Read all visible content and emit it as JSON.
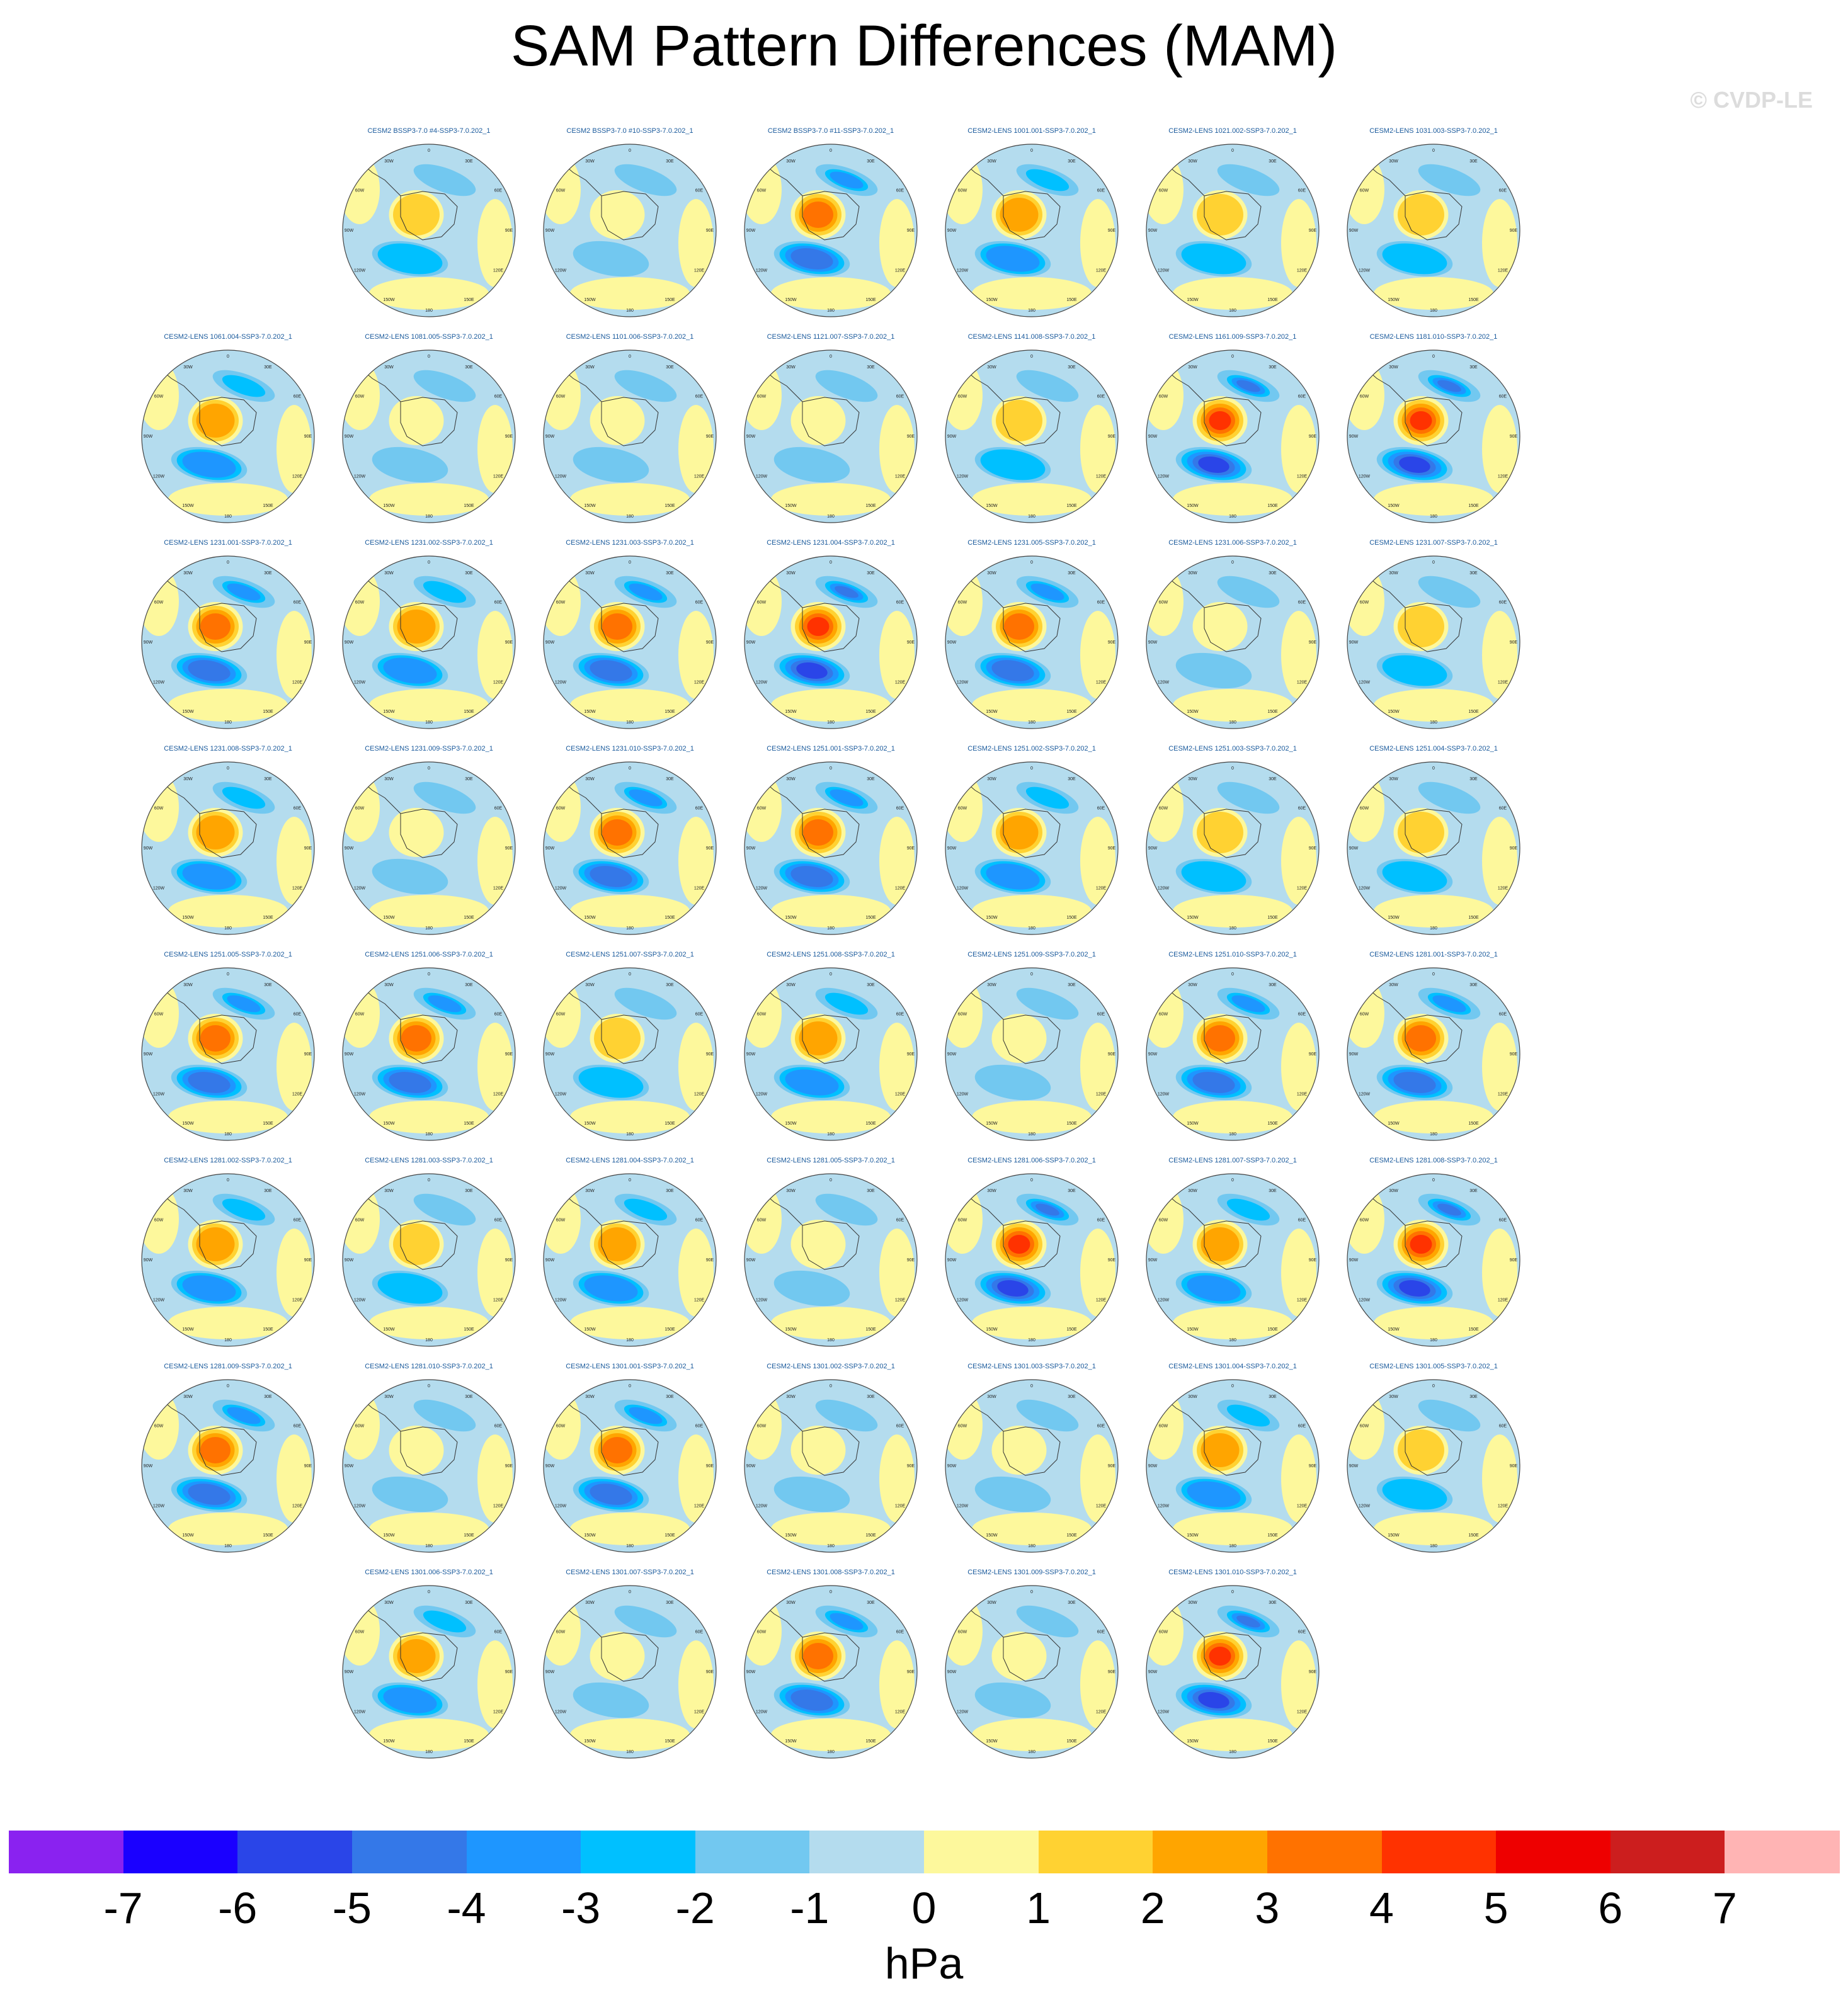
{
  "title": "SAM Pattern Differences (MAM)",
  "watermark": "© CVDP-LE",
  "chart_data": {
    "type": "heatmap",
    "projection": "south-polar-stereographic",
    "title": "SAM Pattern Differences (MAM)",
    "grid_columns": 7,
    "map_labels": [
      "0",
      "30E",
      "60E",
      "90E",
      "120E",
      "150E",
      "180",
      "150W",
      "120W",
      "90W",
      "60W",
      "30W"
    ],
    "panels": [
      {
        "name": "CESM2 BSSP3-7.0 #4-SSP3-7.0.202_1",
        "row": 0,
        "col": 1,
        "amp": 2
      },
      {
        "name": "CESM2 BSSP3-7.0 #10-SSP3-7.0.202_1",
        "row": 0,
        "col": 2,
        "amp": 1
      },
      {
        "name": "CESM2 BSSP3-7.0 #11-SSP3-7.0.202_1",
        "row": 0,
        "col": 3,
        "amp": 4
      },
      {
        "name": "CESM2-LENS 1001.001-SSP3-7.0.202_1",
        "row": 0,
        "col": 4,
        "amp": 3
      },
      {
        "name": "CESM2-LENS 1021.002-SSP3-7.0.202_1",
        "row": 0,
        "col": 5,
        "amp": 2
      },
      {
        "name": "CESM2-LENS 1031.003-SSP3-7.0.202_1",
        "row": 0,
        "col": 6,
        "amp": 2
      },
      {
        "name": "CESM2-LENS 1061.004-SSP3-7.0.202_1",
        "row": 1,
        "col": 0,
        "amp": 3
      },
      {
        "name": "CESM2-LENS 1081.005-SSP3-7.0.202_1",
        "row": 1,
        "col": 1,
        "amp": 1
      },
      {
        "name": "CESM2-LENS 1101.006-SSP3-7.0.202_1",
        "row": 1,
        "col": 2,
        "amp": 1
      },
      {
        "name": "CESM2-LENS 1121.007-SSP3-7.0.202_1",
        "row": 1,
        "col": 3,
        "amp": 1
      },
      {
        "name": "CESM2-LENS 1141.008-SSP3-7.0.202_1",
        "row": 1,
        "col": 4,
        "amp": 2
      },
      {
        "name": "CESM2-LENS 1161.009-SSP3-7.0.202_1",
        "row": 1,
        "col": 5,
        "amp": 5
      },
      {
        "name": "CESM2-LENS 1181.010-SSP3-7.0.202_1",
        "row": 1,
        "col": 6,
        "amp": 5
      },
      {
        "name": "CESM2-LENS 1231.001-SSP3-7.0.202_1",
        "row": 2,
        "col": 0,
        "amp": 4
      },
      {
        "name": "CESM2-LENS 1231.002-SSP3-7.0.202_1",
        "row": 2,
        "col": 1,
        "amp": 3
      },
      {
        "name": "CESM2-LENS 1231.003-SSP3-7.0.202_1",
        "row": 2,
        "col": 2,
        "amp": 4
      },
      {
        "name": "CESM2-LENS 1231.004-SSP3-7.0.202_1",
        "row": 2,
        "col": 3,
        "amp": 5
      },
      {
        "name": "CESM2-LENS 1231.005-SSP3-7.0.202_1",
        "row": 2,
        "col": 4,
        "amp": 4
      },
      {
        "name": "CESM2-LENS 1231.006-SSP3-7.0.202_1",
        "row": 2,
        "col": 5,
        "amp": 1
      },
      {
        "name": "CESM2-LENS 1231.007-SSP3-7.0.202_1",
        "row": 2,
        "col": 6,
        "amp": 2
      },
      {
        "name": "CESM2-LENS 1231.008-SSP3-7.0.202_1",
        "row": 3,
        "col": 0,
        "amp": 3
      },
      {
        "name": "CESM2-LENS 1231.009-SSP3-7.0.202_1",
        "row": 3,
        "col": 1,
        "amp": 1
      },
      {
        "name": "CESM2-LENS 1231.010-SSP3-7.0.202_1",
        "row": 3,
        "col": 2,
        "amp": 4
      },
      {
        "name": "CESM2-LENS 1251.001-SSP3-7.0.202_1",
        "row": 3,
        "col": 3,
        "amp": 4
      },
      {
        "name": "CESM2-LENS 1251.002-SSP3-7.0.202_1",
        "row": 3,
        "col": 4,
        "amp": 3
      },
      {
        "name": "CESM2-LENS 1251.003-SSP3-7.0.202_1",
        "row": 3,
        "col": 5,
        "amp": 2
      },
      {
        "name": "CESM2-LENS 1251.004-SSP3-7.0.202_1",
        "row": 3,
        "col": 6,
        "amp": 2
      },
      {
        "name": "CESM2-LENS 1251.005-SSP3-7.0.202_1",
        "row": 4,
        "col": 0,
        "amp": 4
      },
      {
        "name": "CESM2-LENS 1251.006-SSP3-7.0.202_1",
        "row": 4,
        "col": 1,
        "amp": 4
      },
      {
        "name": "CESM2-LENS 1251.007-SSP3-7.0.202_1",
        "row": 4,
        "col": 2,
        "amp": 2
      },
      {
        "name": "CESM2-LENS 1251.008-SSP3-7.0.202_1",
        "row": 4,
        "col": 3,
        "amp": 3
      },
      {
        "name": "CESM2-LENS 1251.009-SSP3-7.0.202_1",
        "row": 4,
        "col": 4,
        "amp": 1
      },
      {
        "name": "CESM2-LENS 1251.010-SSP3-7.0.202_1",
        "row": 4,
        "col": 5,
        "amp": 4
      },
      {
        "name": "CESM2-LENS 1281.001-SSP3-7.0.202_1",
        "row": 4,
        "col": 6,
        "amp": 4
      },
      {
        "name": "CESM2-LENS 1281.002-SSP3-7.0.202_1",
        "row": 5,
        "col": 0,
        "amp": 3
      },
      {
        "name": "CESM2-LENS 1281.003-SSP3-7.0.202_1",
        "row": 5,
        "col": 1,
        "amp": 2
      },
      {
        "name": "CESM2-LENS 1281.004-SSP3-7.0.202_1",
        "row": 5,
        "col": 2,
        "amp": 3
      },
      {
        "name": "CESM2-LENS 1281.005-SSP3-7.0.202_1",
        "row": 5,
        "col": 3,
        "amp": 1
      },
      {
        "name": "CESM2-LENS 1281.006-SSP3-7.0.202_1",
        "row": 5,
        "col": 4,
        "amp": 5
      },
      {
        "name": "CESM2-LENS 1281.007-SSP3-7.0.202_1",
        "row": 5,
        "col": 5,
        "amp": 3
      },
      {
        "name": "CESM2-LENS 1281.008-SSP3-7.0.202_1",
        "row": 5,
        "col": 6,
        "amp": 5
      },
      {
        "name": "CESM2-LENS 1281.009-SSP3-7.0.202_1",
        "row": 6,
        "col": 0,
        "amp": 4
      },
      {
        "name": "CESM2-LENS 1281.010-SSP3-7.0.202_1",
        "row": 6,
        "col": 1,
        "amp": 1
      },
      {
        "name": "CESM2-LENS 1301.001-SSP3-7.0.202_1",
        "row": 6,
        "col": 2,
        "amp": 4
      },
      {
        "name": "CESM2-LENS 1301.002-SSP3-7.0.202_1",
        "row": 6,
        "col": 3,
        "amp": 1
      },
      {
        "name": "CESM2-LENS 1301.003-SSP3-7.0.202_1",
        "row": 6,
        "col": 4,
        "amp": 1
      },
      {
        "name": "CESM2-LENS 1301.004-SSP3-7.0.202_1",
        "row": 6,
        "col": 5,
        "amp": 3
      },
      {
        "name": "CESM2-LENS 1301.005-SSP3-7.0.202_1",
        "row": 6,
        "col": 6,
        "amp": 2
      },
      {
        "name": "CESM2-LENS 1301.006-SSP3-7.0.202_1",
        "row": 7,
        "col": 1,
        "amp": 3
      },
      {
        "name": "CESM2-LENS 1301.007-SSP3-7.0.202_1",
        "row": 7,
        "col": 2,
        "amp": 1
      },
      {
        "name": "CESM2-LENS 1301.008-SSP3-7.0.202_1",
        "row": 7,
        "col": 3,
        "amp": 4
      },
      {
        "name": "CESM2-LENS 1301.009-SSP3-7.0.202_1",
        "row": 7,
        "col": 4,
        "amp": 1
      },
      {
        "name": "CESM2-LENS 1301.010-SSP3-7.0.202_1",
        "row": 7,
        "col": 5,
        "amp": 5
      }
    ],
    "colorbar": {
      "label": "hPa",
      "ticks": [
        "-7",
        "-6",
        "-5",
        "-4",
        "-3",
        "-2",
        "-1",
        "0",
        "1",
        "2",
        "3",
        "4",
        "5",
        "6",
        "7"
      ],
      "colors": [
        "#8a22f0",
        "#1a00ff",
        "#2a45e8",
        "#3478e8",
        "#1e96ff",
        "#00c0ff",
        "#72c8f0",
        "#b4dcee",
        "#fdf89c",
        "#ffd232",
        "#ffa500",
        "#ff7200",
        "#ff3200",
        "#ee0000",
        "#cc1e1e",
        "#ffb4b4"
      ]
    }
  }
}
